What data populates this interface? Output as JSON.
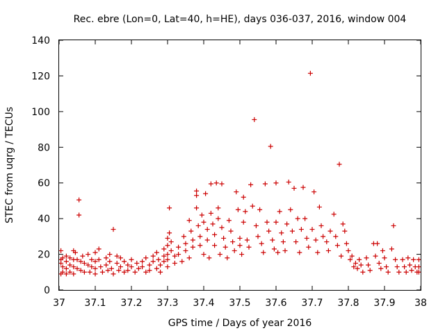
{
  "chart_data": {
    "type": "scatter",
    "title": "Rec. ebre (Lon=0, Lat=40, h=HE), days 036-037, 2016, window 004",
    "xlabel": "GPS time / Days of year 2016",
    "ylabel": "STEC from uqrg / TECUs",
    "xlim": [
      37,
      38
    ],
    "ylim": [
      0,
      140
    ],
    "xticks": [
      "37",
      "37.1",
      "37.2",
      "37.3",
      "37.4",
      "37.5",
      "37.6",
      "37.7",
      "37.8",
      "37.9",
      "38"
    ],
    "yticks": [
      "0",
      "20",
      "40",
      "60",
      "80",
      "100",
      "120",
      "140"
    ],
    "grid": false,
    "marker": "plus",
    "marker_color": "#cc0000",
    "series": [
      {
        "points": [
          [
            37.005,
            22
          ],
          [
            37.005,
            17
          ],
          [
            37.005,
            15
          ],
          [
            37.005,
            9
          ],
          [
            37.01,
            18
          ],
          [
            37.01,
            13
          ],
          [
            37.01,
            10
          ],
          [
            37.02,
            19
          ],
          [
            37.02,
            16
          ],
          [
            37.02,
            12
          ],
          [
            37.02,
            9
          ],
          [
            37.03,
            18
          ],
          [
            37.03,
            14
          ],
          [
            37.03,
            10
          ],
          [
            37.04,
            22
          ],
          [
            37.04,
            17
          ],
          [
            37.04,
            13
          ],
          [
            37.04,
            9
          ],
          [
            37.045,
            21
          ],
          [
            37.05,
            17
          ],
          [
            37.05,
            12
          ],
          [
            37.055,
            50.5
          ],
          [
            37.055,
            42
          ],
          [
            37.06,
            16
          ],
          [
            37.06,
            11
          ],
          [
            37.065,
            19
          ],
          [
            37.07,
            15
          ],
          [
            37.07,
            10
          ],
          [
            37.08,
            20
          ],
          [
            37.08,
            14
          ],
          [
            37.085,
            10
          ],
          [
            37.09,
            17
          ],
          [
            37.09,
            13
          ],
          [
            37.1,
            21
          ],
          [
            37.1,
            16
          ],
          [
            37.1,
            12
          ],
          [
            37.1,
            9
          ],
          [
            37.11,
            23
          ],
          [
            37.11,
            17
          ],
          [
            37.115,
            13
          ],
          [
            37.12,
            10
          ],
          [
            37.13,
            18
          ],
          [
            37.13,
            14
          ],
          [
            37.135,
            11
          ],
          [
            37.14,
            20
          ],
          [
            37.14,
            16
          ],
          [
            37.145,
            12
          ],
          [
            37.15,
            34
          ],
          [
            37.15,
            9
          ],
          [
            37.16,
            19
          ],
          [
            37.16,
            15
          ],
          [
            37.165,
            11
          ],
          [
            37.17,
            18
          ],
          [
            37.17,
            13
          ],
          [
            37.18,
            10
          ],
          [
            37.18,
            16
          ],
          [
            37.19,
            14
          ],
          [
            37.19,
            11
          ],
          [
            37.2,
            17
          ],
          [
            37.2,
            13
          ],
          [
            37.21,
            10
          ],
          [
            37.215,
            15
          ],
          [
            37.22,
            12
          ],
          [
            37.23,
            16
          ],
          [
            37.23,
            13
          ],
          [
            37.24,
            10
          ],
          [
            37.24,
            18
          ],
          [
            37.25,
            14
          ],
          [
            37.25,
            11
          ],
          [
            37.26,
            19
          ],
          [
            37.26,
            16
          ],
          [
            37.27,
            12
          ],
          [
            37.27,
            21
          ],
          [
            37.275,
            17
          ],
          [
            37.28,
            14
          ],
          [
            37.28,
            10
          ],
          [
            37.29,
            23
          ],
          [
            37.29,
            19
          ],
          [
            37.29,
            16
          ],
          [
            37.3,
            29
          ],
          [
            37.3,
            25
          ],
          [
            37.3,
            20
          ],
          [
            37.3,
            17
          ],
          [
            37.3,
            13
          ],
          [
            37.305,
            46
          ],
          [
            37.305,
            32
          ],
          [
            37.31,
            27
          ],
          [
            37.31,
            22
          ],
          [
            37.32,
            19
          ],
          [
            37.32,
            15
          ],
          [
            37.33,
            24
          ],
          [
            37.33,
            20
          ],
          [
            37.34,
            16
          ],
          [
            37.345,
            30
          ],
          [
            37.35,
            26
          ],
          [
            37.35,
            22
          ],
          [
            37.36,
            18
          ],
          [
            37.36,
            39
          ],
          [
            37.365,
            33
          ],
          [
            37.37,
            28
          ],
          [
            37.37,
            24
          ],
          [
            37.38,
            55.5
          ],
          [
            37.38,
            53
          ],
          [
            37.38,
            46
          ],
          [
            37.385,
            36
          ],
          [
            37.39,
            30
          ],
          [
            37.39,
            25
          ],
          [
            37.395,
            42
          ],
          [
            37.4,
            38
          ],
          [
            37.4,
            20
          ],
          [
            37.405,
            54
          ],
          [
            37.41,
            34
          ],
          [
            37.41,
            28
          ],
          [
            37.415,
            18
          ],
          [
            37.42,
            59.5
          ],
          [
            37.42,
            43
          ],
          [
            37.425,
            37
          ],
          [
            37.43,
            31
          ],
          [
            37.43,
            25
          ],
          [
            37.435,
            60
          ],
          [
            37.44,
            46
          ],
          [
            37.44,
            40
          ],
          [
            37.445,
            20
          ],
          [
            37.45,
            59.5
          ],
          [
            37.45,
            35
          ],
          [
            37.455,
            29
          ],
          [
            37.46,
            24
          ],
          [
            37.465,
            18
          ],
          [
            37.47,
            39
          ],
          [
            37.475,
            33
          ],
          [
            37.48,
            27
          ],
          [
            37.485,
            22
          ],
          [
            37.49,
            55
          ],
          [
            37.495,
            45
          ],
          [
            37.5,
            29
          ],
          [
            37.5,
            25
          ],
          [
            37.505,
            20
          ],
          [
            37.51,
            52
          ],
          [
            37.51,
            38
          ],
          [
            37.515,
            44
          ],
          [
            37.52,
            28
          ],
          [
            37.525,
            24
          ],
          [
            37.53,
            59
          ],
          [
            37.535,
            47
          ],
          [
            37.54,
            95.5
          ],
          [
            37.545,
            36
          ],
          [
            37.55,
            30
          ],
          [
            37.555,
            45
          ],
          [
            37.56,
            26
          ],
          [
            37.565,
            21
          ],
          [
            37.57,
            59.5
          ],
          [
            37.575,
            38
          ],
          [
            37.58,
            33
          ],
          [
            37.585,
            80.5
          ],
          [
            37.59,
            28
          ],
          [
            37.595,
            23
          ],
          [
            37.6,
            60
          ],
          [
            37.6,
            38
          ],
          [
            37.605,
            21
          ],
          [
            37.61,
            44
          ],
          [
            37.615,
            32
          ],
          [
            37.62,
            27
          ],
          [
            37.625,
            22
          ],
          [
            37.63,
            37
          ],
          [
            37.635,
            60.5
          ],
          [
            37.64,
            45
          ],
          [
            37.645,
            33
          ],
          [
            37.65,
            57
          ],
          [
            37.655,
            27
          ],
          [
            37.66,
            40
          ],
          [
            37.665,
            21
          ],
          [
            37.67,
            34
          ],
          [
            37.675,
            57.5
          ],
          [
            37.68,
            40
          ],
          [
            37.685,
            29
          ],
          [
            37.69,
            24
          ],
          [
            37.695,
            121.5
          ],
          [
            37.7,
            34
          ],
          [
            37.705,
            55
          ],
          [
            37.71,
            28
          ],
          [
            37.715,
            21
          ],
          [
            37.72,
            46.5
          ],
          [
            37.725,
            36
          ],
          [
            37.73,
            30
          ],
          [
            37.74,
            27
          ],
          [
            37.745,
            22
          ],
          [
            37.75,
            33
          ],
          [
            37.76,
            42.5
          ],
          [
            37.765,
            30
          ],
          [
            37.77,
            25
          ],
          [
            37.775,
            70.5
          ],
          [
            37.78,
            19
          ],
          [
            37.785,
            37
          ],
          [
            37.79,
            33
          ],
          [
            37.795,
            26
          ],
          [
            37.8,
            22
          ],
          [
            37.805,
            17
          ],
          [
            37.81,
            19
          ],
          [
            37.815,
            13
          ],
          [
            37.82,
            15
          ],
          [
            37.825,
            12
          ],
          [
            37.83,
            17
          ],
          [
            37.835,
            14
          ],
          [
            37.84,
            10
          ],
          [
            37.85,
            18
          ],
          [
            37.855,
            14
          ],
          [
            37.86,
            11
          ],
          [
            37.87,
            26
          ],
          [
            37.875,
            19
          ],
          [
            37.88,
            26
          ],
          [
            37.885,
            15
          ],
          [
            37.89,
            12
          ],
          [
            37.895,
            22
          ],
          [
            37.9,
            18
          ],
          [
            37.905,
            13
          ],
          [
            37.91,
            10
          ],
          [
            37.92,
            23
          ],
          [
            37.925,
            36
          ],
          [
            37.93,
            17
          ],
          [
            37.935,
            13
          ],
          [
            37.94,
            10
          ],
          [
            37.95,
            17
          ],
          [
            37.955,
            13
          ],
          [
            37.96,
            10
          ],
          [
            37.965,
            18
          ],
          [
            37.97,
            14
          ],
          [
            37.975,
            11
          ],
          [
            37.98,
            17
          ],
          [
            37.985,
            13
          ],
          [
            37.99,
            10
          ],
          [
            37.995,
            17
          ],
          [
            37.995,
            13
          ],
          [
            37.995,
            10
          ]
        ]
      }
    ]
  }
}
